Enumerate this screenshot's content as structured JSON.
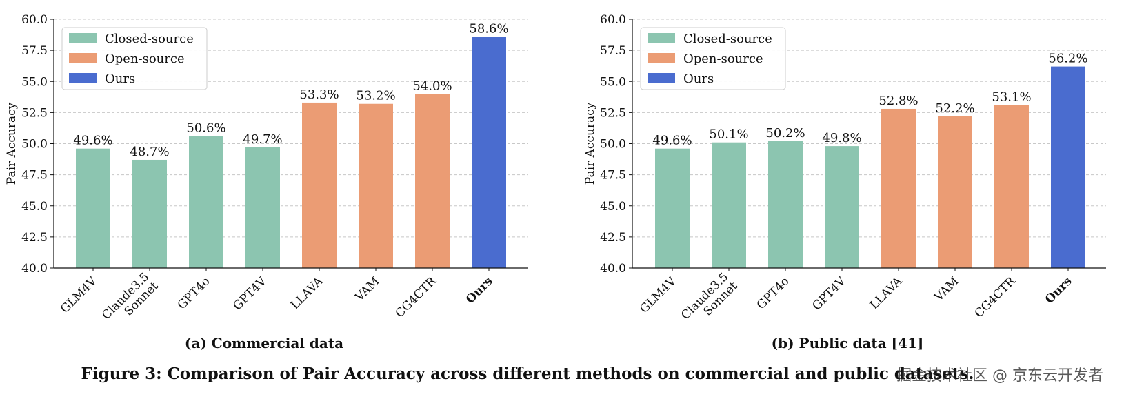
{
  "figure_caption": "Figure 3: Comparison of Pair Accuracy across different methods on commercial and public datasets.",
  "watermark": "掘金技术社区 @ 京东云开发者",
  "colors": {
    "Closed-source": "#8cc5b0",
    "Open-source": "#eb9c74",
    "Ours": "#4a6ccf"
  },
  "chart_data": [
    {
      "type": "bar",
      "title": "(a) Commercial data",
      "ylabel": "Pair Accuracy",
      "ylim": [
        40.0,
        60.0
      ],
      "yticks": [
        "40.0",
        "42.5",
        "45.0",
        "47.5",
        "50.0",
        "52.5",
        "55.0",
        "57.5",
        "60.0"
      ],
      "grid": true,
      "legend_position": "top-left",
      "legend": [
        "Closed-source",
        "Open-source",
        "Ours"
      ],
      "categories": [
        "GLM4V",
        "Claude3.5 Sonnet",
        "GPT4o",
        "GPT4V",
        "LLAVA",
        "VAM",
        "CG4CTR",
        "Ours"
      ],
      "values": [
        49.6,
        48.7,
        50.6,
        49.7,
        53.3,
        53.2,
        54.0,
        58.6
      ],
      "value_labels": [
        "49.6%",
        "48.7%",
        "50.6%",
        "49.7%",
        "53.3%",
        "53.2%",
        "54.0%",
        "58.6%"
      ],
      "groups": [
        "Closed-source",
        "Closed-source",
        "Closed-source",
        "Closed-source",
        "Open-source",
        "Open-source",
        "Open-source",
        "Ours"
      ]
    },
    {
      "type": "bar",
      "title": "(b) Public data [41]",
      "ylabel": "Pair Accuracy",
      "ylim": [
        40.0,
        60.0
      ],
      "yticks": [
        "40.0",
        "42.5",
        "45.0",
        "47.5",
        "50.0",
        "52.5",
        "55.0",
        "57.5",
        "60.0"
      ],
      "grid": true,
      "legend_position": "top-left",
      "legend": [
        "Closed-source",
        "Open-source",
        "Ours"
      ],
      "categories": [
        "GLM4V",
        "Claude3.5 Sonnet",
        "GPT4o",
        "GPT4V",
        "LLAVA",
        "VAM",
        "CG4CTR",
        "Ours"
      ],
      "values": [
        49.6,
        50.1,
        50.2,
        49.8,
        52.8,
        52.2,
        53.1,
        56.2
      ],
      "value_labels": [
        "49.6%",
        "50.1%",
        "50.2%",
        "49.8%",
        "52.8%",
        "52.2%",
        "53.1%",
        "56.2%"
      ],
      "groups": [
        "Closed-source",
        "Closed-source",
        "Closed-source",
        "Closed-source",
        "Open-source",
        "Open-source",
        "Open-source",
        "Ours"
      ]
    }
  ]
}
